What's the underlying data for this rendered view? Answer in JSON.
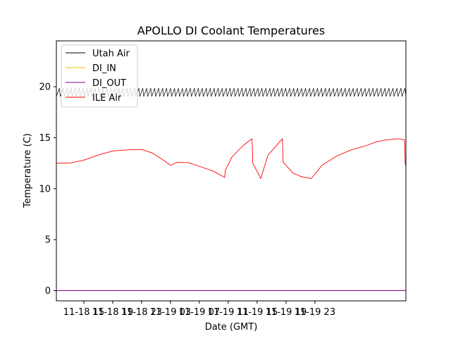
{
  "chart_data": {
    "type": "line",
    "title": "APOLLO DI Coolant Temperatures",
    "xlabel": "Date (GMT)",
    "ylabel": "Temperature (C)",
    "xlim_hours": [
      11.2,
      59.6
    ],
    "ylim": [
      -1,
      24.5
    ],
    "x_unit": "hours since 11-18 00:00 GMT",
    "grid": false,
    "legend_position": "upper-left",
    "y_ticks": [
      0,
      5,
      10,
      15,
      20
    ],
    "y_tick_labels": [
      "0",
      "5",
      "10",
      "15",
      "20"
    ],
    "x_ticks": [
      {
        "label": "11-18 15",
        "hour": 15
      },
      {
        "label": "11-18 19",
        "hour": 19
      },
      {
        "label": "11-18 23",
        "hour": 23
      },
      {
        "label": "11-19 03",
        "hour": 27
      },
      {
        "label": "11-19 07",
        "hour": 31
      },
      {
        "label": "11-19 11",
        "hour": 35
      },
      {
        "label": "11-19 15",
        "hour": 39
      },
      {
        "label": "11-19 19",
        "hour": 43
      },
      {
        "label": "11-19 23",
        "hour": 47
      }
    ],
    "series": [
      {
        "name": "Utah Air",
        "color": "#000000",
        "pattern": "oscillating",
        "baseline": 19.45,
        "amplitude": 0.4,
        "period_hours": 0.55,
        "x": [
          11.2,
          59.6
        ],
        "values": [
          19.45,
          19.45
        ]
      },
      {
        "name": "DI_IN",
        "color": "#e8c000",
        "x": [
          11.2,
          59.6
        ],
        "values": [
          0,
          0
        ]
      },
      {
        "name": "DI_OUT",
        "color": "#800080",
        "x": [
          11.2,
          59.6
        ],
        "values": [
          0,
          0
        ]
      },
      {
        "name": "ILE Air",
        "color": "#ff0000",
        "x": [
          11.2,
          13,
          15,
          17,
          19,
          21,
          23,
          24.5,
          26,
          27,
          28,
          29.5,
          31,
          33,
          34.5,
          34.6,
          35.5,
          37,
          38.3,
          38.4,
          39.5,
          40.5,
          42.5,
          42.6,
          44,
          44.8,
          45,
          46.5,
          48,
          50,
          52,
          54,
          55.5,
          57,
          58.5,
          59.4,
          59.5,
          59.6
        ],
        "values": [
          12.5,
          12.5,
          12.8,
          13.3,
          13.7,
          13.8,
          13.85,
          13.5,
          12.8,
          12.3,
          12.6,
          12.55,
          12.2,
          11.7,
          11.1,
          11.8,
          13.1,
          14.2,
          14.9,
          12.5,
          11.0,
          13.3,
          14.9,
          12.6,
          11.5,
          11.3,
          11.2,
          11.0,
          12.3,
          13.2,
          13.8,
          14.2,
          14.6,
          14.8,
          14.9,
          14.8,
          12.5,
          12.2
        ]
      }
    ]
  }
}
